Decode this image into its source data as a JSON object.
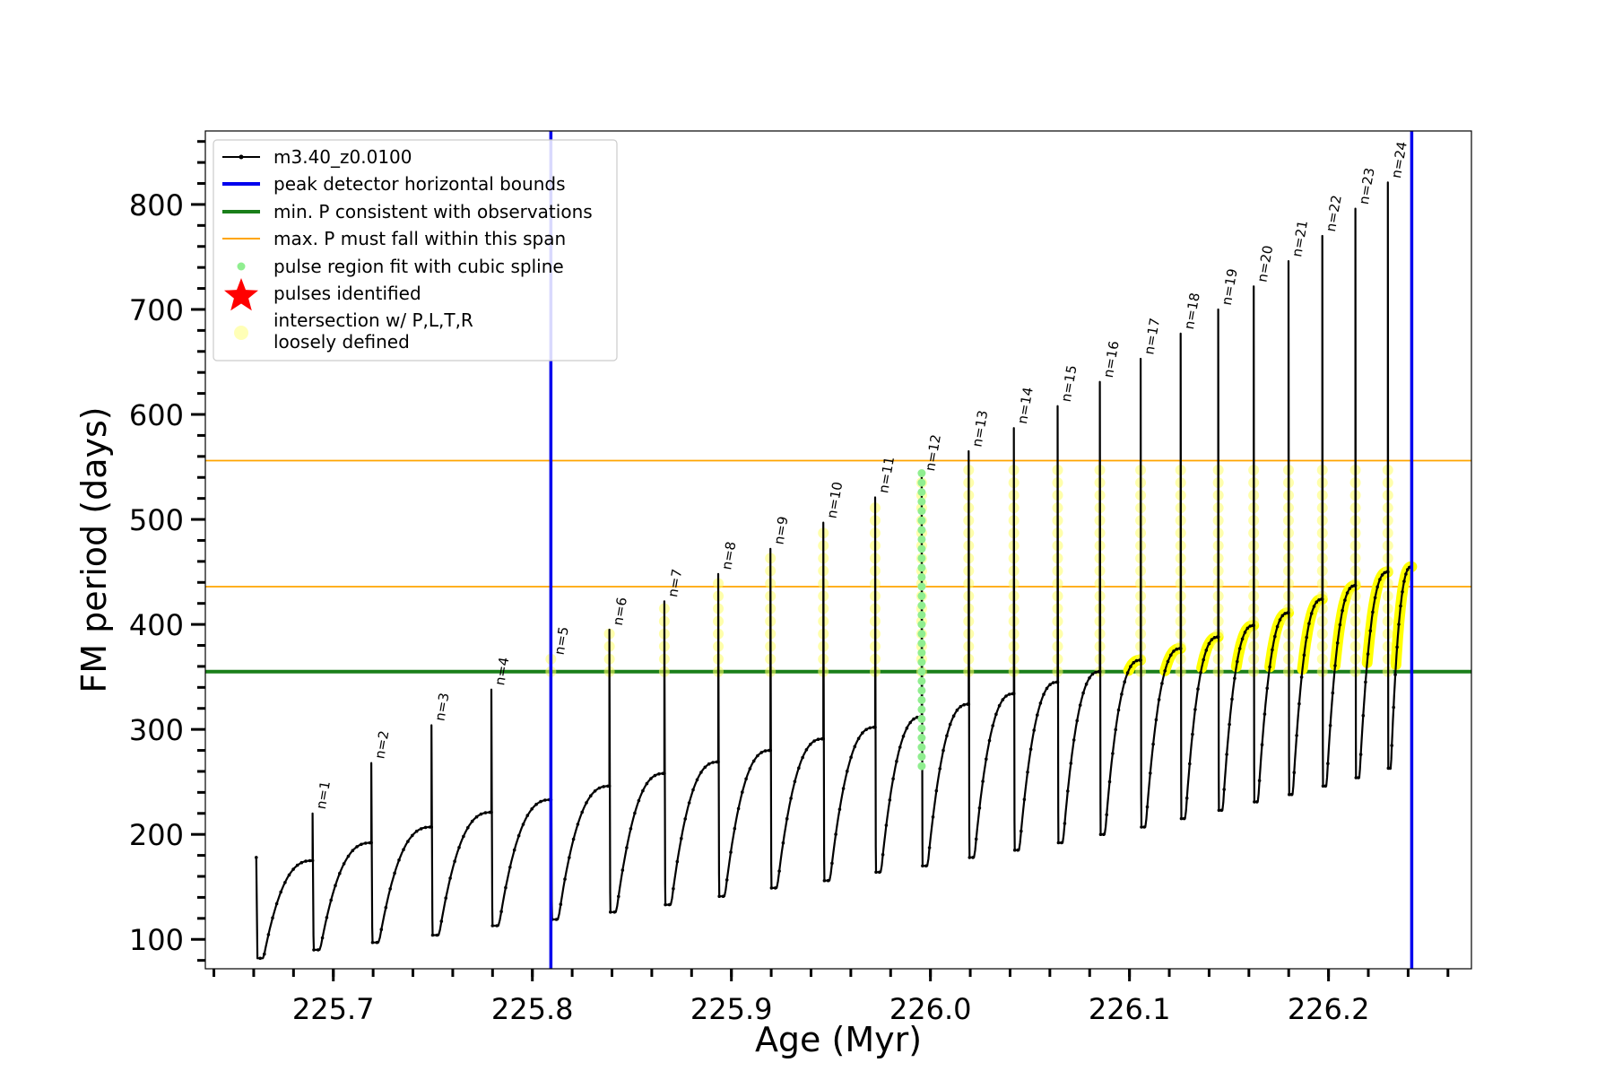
{
  "chart_data": {
    "type": "line",
    "xlabel": "Age (Myr)",
    "ylabel": "FM period (days)",
    "xlim": [
      225.6357,
      226.2718
    ],
    "ylim": [
      72,
      870
    ],
    "x_ticks": [
      225.7,
      225.8,
      225.9,
      226.0,
      226.1,
      226.2
    ],
    "x_tick_labels": [
      "225.7",
      "225.8",
      "225.9",
      "226.0",
      "226.1",
      "226.2"
    ],
    "y_ticks": [
      100,
      200,
      300,
      400,
      500,
      600,
      700,
      800
    ],
    "y_tick_labels": [
      "100",
      "200",
      "300",
      "400",
      "500",
      "600",
      "700",
      "800"
    ],
    "grid": false,
    "legend_position": "top-left",
    "legend": [
      {
        "label": "m3.40_z0.0100",
        "kind": "line-marker",
        "color": "#000000"
      },
      {
        "label": "peak detector horizontal bounds",
        "kind": "line",
        "color": "#0000ee"
      },
      {
        "label": "min. P consistent with observations",
        "kind": "line",
        "color": "#1a7f1a"
      },
      {
        "label": "max. P must fall within this span",
        "kind": "line",
        "color": "#ffa500"
      },
      {
        "label": "pulse region fit with cubic spline",
        "kind": "dot",
        "color": "#90ee90"
      },
      {
        "label": "pulses identified",
        "kind": "star",
        "color": "#ff0000"
      },
      {
        "label": "intersection w/ P,L,T,R",
        "label2": "loosely defined",
        "kind": "circle",
        "color": "#ffff99"
      }
    ],
    "series": [
      {
        "name": "m3.40_z0.0100",
        "color": "#000000",
        "initial": {
          "x": 225.6613,
          "peak": 178
        },
        "pulses": [
          {
            "n": "n=1",
            "x": 225.6896,
            "pre": 175,
            "peak": 220,
            "min": 90
          },
          {
            "n": "n=2",
            "x": 225.7191,
            "pre": 192,
            "peak": 268,
            "min": 97
          },
          {
            "n": "n=3",
            "x": 225.7493,
            "pre": 207,
            "peak": 304,
            "min": 104
          },
          {
            "n": "n=4",
            "x": 225.7794,
            "pre": 221,
            "peak": 338,
            "min": 113
          },
          {
            "n": "n=5",
            "x": 225.8093,
            "pre": 233,
            "peak": 367,
            "min": 119
          },
          {
            "n": "n=6",
            "x": 225.8387,
            "pre": 246,
            "peak": 395,
            "min": 126
          },
          {
            "n": "n=7",
            "x": 225.8663,
            "pre": 258,
            "peak": 422,
            "min": 133
          },
          {
            "n": "n=8",
            "x": 225.8934,
            "pre": 269,
            "peak": 448,
            "min": 141
          },
          {
            "n": "n=9",
            "x": 225.9196,
            "pre": 280,
            "peak": 472,
            "min": 149
          },
          {
            "n": "n=10",
            "x": 225.9462,
            "pre": 291,
            "peak": 497,
            "min": 156
          },
          {
            "n": "n=11",
            "x": 225.9722,
            "pre": 302,
            "peak": 521,
            "min": 164
          },
          {
            "n": "n=12",
            "x": 225.9956,
            "pre": 312,
            "peak": 542,
            "min": 170
          },
          {
            "n": "n=13",
            "x": 226.0192,
            "pre": 324,
            "peak": 565,
            "min": 178
          },
          {
            "n": "n=14",
            "x": 226.0419,
            "pre": 334,
            "peak": 587,
            "min": 185
          },
          {
            "n": "n=15",
            "x": 226.0639,
            "pre": 345,
            "peak": 608,
            "min": 192
          },
          {
            "n": "n=16",
            "x": 226.0851,
            "pre": 355,
            "peak": 631,
            "min": 200
          },
          {
            "n": "n=17",
            "x": 226.1056,
            "pre": 366,
            "peak": 653,
            "min": 207
          },
          {
            "n": "n=18",
            "x": 226.1257,
            "pre": 377,
            "peak": 677,
            "min": 215
          },
          {
            "n": "n=19",
            "x": 226.1446,
            "pre": 388,
            "peak": 700,
            "min": 223
          },
          {
            "n": "n=20",
            "x": 226.1624,
            "pre": 399,
            "peak": 722,
            "min": 231
          },
          {
            "n": "n=21",
            "x": 226.1799,
            "pre": 411,
            "peak": 746,
            "min": 238
          },
          {
            "n": "n=22",
            "x": 226.1969,
            "pre": 424,
            "peak": 770,
            "min": 246
          },
          {
            "n": "n=23",
            "x": 226.2135,
            "pre": 437,
            "peak": 796,
            "min": 254
          },
          {
            "n": "n=24",
            "x": 226.2298,
            "pre": 450,
            "peak": 821,
            "min": 263
          }
        ],
        "final_x": 226.2418,
        "final_value": 455
      }
    ],
    "vertical_lines": [
      {
        "x": 225.8093,
        "color": "#0000ee"
      },
      {
        "x": 226.2418,
        "color": "#0000ee"
      }
    ],
    "horizontal_lines": [
      {
        "y": 355,
        "color": "#1a7f1a"
      },
      {
        "y": 436,
        "color": "#ffa500"
      },
      {
        "y": 556,
        "color": "#ffa500"
      }
    ],
    "spline_region": {
      "x": 225.9956,
      "y_from": 265,
      "y_to": 545,
      "color": "#90ee90"
    },
    "loosely_defined_color": "#ffff66"
  }
}
